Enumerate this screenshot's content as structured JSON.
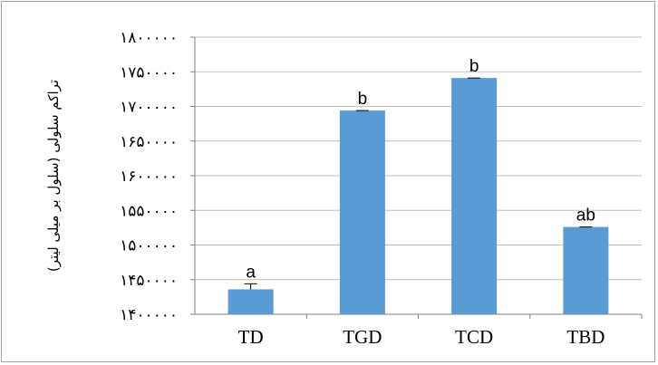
{
  "chart_data": {
    "type": "bar",
    "categories": [
      "TD",
      "TGD",
      "TCD",
      "TBD"
    ],
    "values": [
      1436000,
      1694000,
      1741000,
      1526000
    ],
    "errors": [
      8000,
      0,
      0,
      0
    ],
    "significance": [
      "a",
      "b",
      "b",
      "ab"
    ],
    "ylabel": "تراکم سلولی (سلول بر میلی لیتر)",
    "ylim": [
      1400000,
      1800000
    ],
    "yticks": [
      1400000,
      1450000,
      1500000,
      1550000,
      1600000,
      1650000,
      1700000,
      1750000,
      1800000
    ],
    "ytick_labels": [
      "۱۴۰۰۰۰۰",
      "۱۴۵۰۰۰۰",
      "۱۵۰۰۰۰۰",
      "۱۵۵۰۰۰۰",
      "۱۶۰۰۰۰۰",
      "۱۶۵۰۰۰۰",
      "۱۷۰۰۰۰۰",
      "۱۷۵۰۰۰۰",
      "۱۸۰۰۰۰۰"
    ],
    "grid": true,
    "bar_color": "#5b9bd5",
    "grid_color": "#bfbfbf",
    "axis_color": "#808080"
  }
}
